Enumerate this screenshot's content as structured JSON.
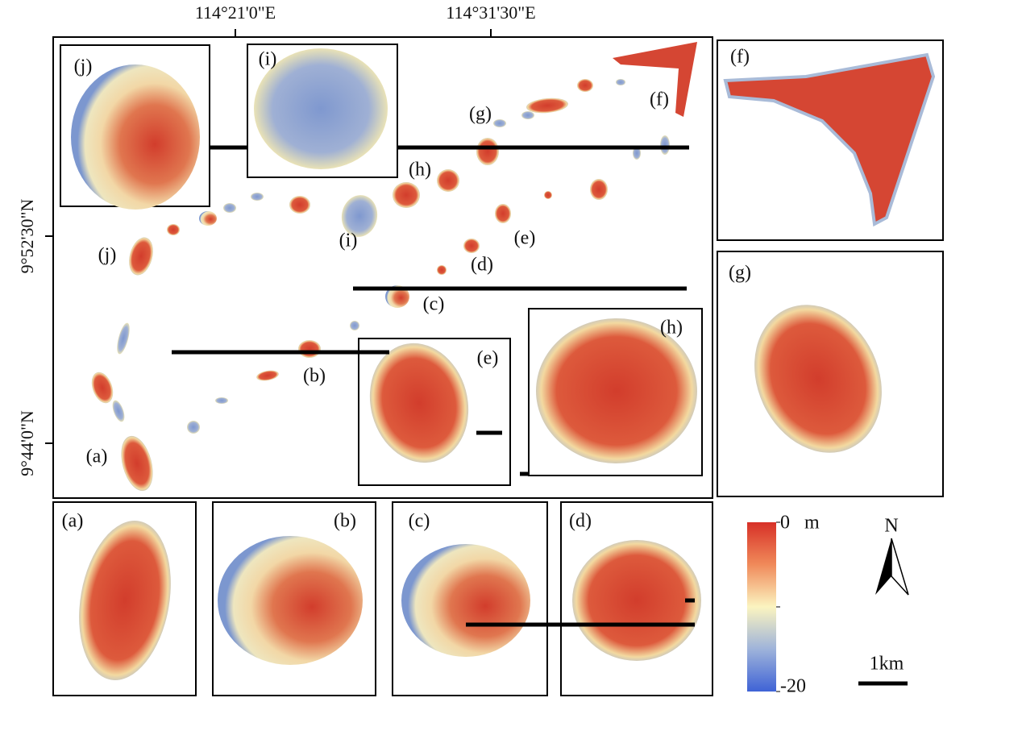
{
  "axes": {
    "top_labels": [
      "114°21'0\"E",
      "114°31'30\"E"
    ],
    "left_labels": [
      "9°52'30\"N",
      "9°44'0\"N"
    ]
  },
  "map_labels": [
    "(a)",
    "(b)",
    "(c)",
    "(d)",
    "(e)",
    "(f)",
    "(g)",
    "(h)",
    "(i)",
    "(j)"
  ],
  "inset_labels": [
    "(a)",
    "(b)",
    "(c)",
    "(d)",
    "(e)",
    "(f)",
    "(g)",
    "(h)",
    "(i)",
    "(j)"
  ],
  "legend": {
    "max": 0,
    "min": -20,
    "unit": "m"
  },
  "north": "N",
  "scale_bar": "1km"
}
